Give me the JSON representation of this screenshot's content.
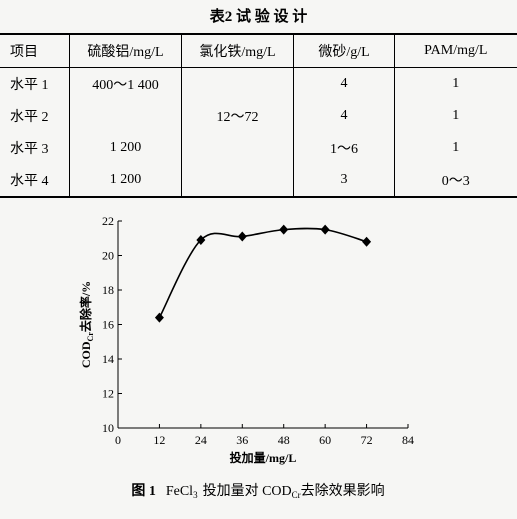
{
  "table": {
    "title": "表2 试 验 设 计",
    "header": [
      "项目",
      "硫酸铝/mg/L",
      "氯化铁/mg/L",
      "微砂/g/L",
      "PAM/mg/L"
    ],
    "rows": [
      [
        "水平 1",
        "400～1 400",
        null,
        "4",
        "1"
      ],
      [
        "水平 2",
        null,
        "12～72",
        "4",
        "1"
      ],
      [
        "水平 3",
        "1 200",
        null,
        "1～6",
        "1"
      ],
      [
        "水平 4",
        "1 200",
        null,
        "3",
        "0～3"
      ]
    ]
  },
  "chart_data": {
    "type": "line",
    "ylabel": {
      "main": "COD",
      "sub": "Cr",
      "rest": "去除率/%"
    },
    "xlabel": "投加量/mg/L",
    "caption": {
      "figure": "图 1",
      "a": "FeCl",
      "a_sub": "3",
      "b": "投加量对 COD",
      "b_sub": "Cr",
      "c": "去除效果影响"
    },
    "x": [
      12,
      24,
      36,
      48,
      60,
      72
    ],
    "values": [
      16.4,
      20.9,
      21.1,
      21.5,
      21.5,
      20.8
    ],
    "color": "#000000",
    "xlim": [
      0,
      84
    ],
    "xticks": [
      0,
      12,
      24,
      36,
      48,
      60,
      72,
      84
    ],
    "ylim": [
      10,
      22
    ],
    "yticks": [
      10,
      12,
      14,
      16,
      18,
      20,
      22
    ]
  }
}
